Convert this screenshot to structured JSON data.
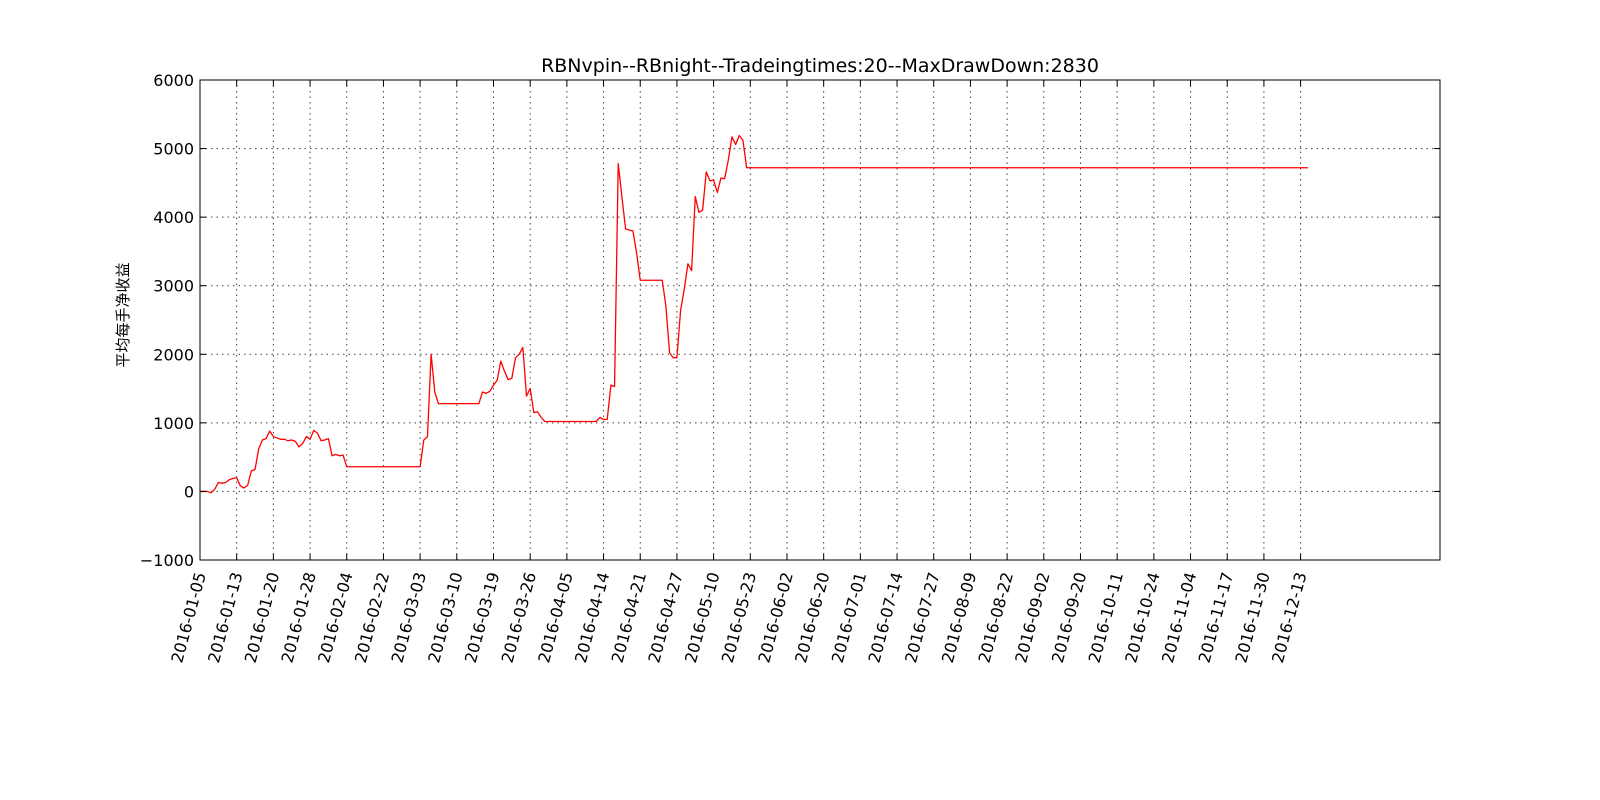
{
  "chart_data": {
    "type": "line",
    "title": "RBNvpin--RBnight--Tradeingtimes:20--MaxDrawDown:2830",
    "xlabel": "",
    "ylabel": "平均每手净收益",
    "ylim": [
      -1000,
      6000
    ],
    "yticks": [
      -1000,
      0,
      1000,
      2000,
      3000,
      4000,
      5000,
      6000
    ],
    "ytick_labels": [
      "−1000",
      "0",
      "1000",
      "2000",
      "3000",
      "4000",
      "5000",
      "6000"
    ],
    "x_index_range": [
      0,
      338
    ],
    "xtick_index": [
      0,
      10,
      20,
      30,
      40,
      50,
      60,
      70,
      80,
      90,
      100,
      110,
      120,
      130,
      140,
      150,
      160,
      170,
      180,
      190,
      200,
      210,
      220,
      230,
      240,
      250,
      260,
      270,
      280,
      290,
      300
    ],
    "xtick_labels": [
      "2016-01-05",
      "2016-01-13",
      "2016-01-20",
      "2016-01-28",
      "2016-02-04",
      "2016-02-22",
      "2016-03-03",
      "2016-03-10",
      "2016-03-19",
      "2016-03-26",
      "2016-04-05",
      "2016-04-14",
      "2016-04-21",
      "2016-04-27",
      "2016-05-10",
      "2016-05-23",
      "2016-06-02",
      "2016-06-20",
      "2016-07-01",
      "2016-07-14",
      "2016-07-27",
      "2016-08-09",
      "2016-08-22",
      "2016-09-02",
      "2016-09-20",
      "2016-10-11",
      "2016-10-24",
      "2016-11-04",
      "2016-11-17",
      "2016-11-30",
      "2016-12-13"
    ],
    "grid": true,
    "legend": "none",
    "series": [
      {
        "color": "#ff0000",
        "points": [
          [
            0,
            0
          ],
          [
            2,
            0
          ],
          [
            3,
            -20
          ],
          [
            4,
            30
          ],
          [
            5,
            130
          ],
          [
            6,
            120
          ],
          [
            7,
            130
          ],
          [
            8,
            170
          ],
          [
            9,
            190
          ],
          [
            10,
            200
          ],
          [
            11,
            80
          ],
          [
            12,
            50
          ],
          [
            13,
            90
          ],
          [
            14,
            300
          ],
          [
            15,
            320
          ],
          [
            16,
            620
          ],
          [
            17,
            750
          ],
          [
            18,
            770
          ],
          [
            19,
            880
          ],
          [
            20,
            800
          ],
          [
            21,
            780
          ],
          [
            22,
            760
          ],
          [
            23,
            760
          ],
          [
            24,
            740
          ],
          [
            25,
            750
          ],
          [
            26,
            730
          ],
          [
            27,
            650
          ],
          [
            28,
            700
          ],
          [
            29,
            800
          ],
          [
            30,
            760
          ],
          [
            31,
            890
          ],
          [
            32,
            850
          ],
          [
            33,
            740
          ],
          [
            34,
            750
          ],
          [
            35,
            770
          ],
          [
            36,
            520
          ],
          [
            37,
            540
          ],
          [
            38,
            520
          ],
          [
            39,
            530
          ],
          [
            40,
            360
          ],
          [
            50,
            360
          ],
          [
            60,
            360
          ],
          [
            61,
            750
          ],
          [
            62,
            800
          ],
          [
            63,
            2000
          ],
          [
            64,
            1450
          ],
          [
            65,
            1280
          ],
          [
            76,
            1280
          ],
          [
            77,
            1450
          ],
          [
            78,
            1430
          ],
          [
            79,
            1460
          ],
          [
            80,
            1550
          ],
          [
            81,
            1620
          ],
          [
            82,
            1900
          ],
          [
            83,
            1750
          ],
          [
            84,
            1630
          ],
          [
            85,
            1650
          ],
          [
            86,
            1950
          ],
          [
            87,
            2000
          ],
          [
            88,
            2100
          ],
          [
            89,
            1390
          ],
          [
            90,
            1500
          ],
          [
            91,
            1150
          ],
          [
            92,
            1160
          ],
          [
            93,
            1080
          ],
          [
            94,
            1020
          ],
          [
            108,
            1020
          ],
          [
            109,
            1080
          ],
          [
            110,
            1050
          ],
          [
            111,
            1050
          ],
          [
            112,
            1550
          ],
          [
            113,
            1530
          ],
          [
            114,
            4780
          ],
          [
            115,
            4300
          ],
          [
            116,
            3830
          ],
          [
            117,
            3810
          ],
          [
            118,
            3800
          ],
          [
            119,
            3480
          ],
          [
            120,
            3080
          ],
          [
            126,
            3080
          ],
          [
            127,
            2700
          ],
          [
            128,
            2020
          ],
          [
            129,
            1950
          ],
          [
            130,
            1950
          ],
          [
            131,
            2640
          ],
          [
            132,
            2950
          ],
          [
            133,
            3320
          ],
          [
            134,
            3220
          ],
          [
            135,
            4300
          ],
          [
            136,
            4070
          ],
          [
            137,
            4100
          ],
          [
            138,
            4660
          ],
          [
            139,
            4530
          ],
          [
            140,
            4540
          ],
          [
            141,
            4360
          ],
          [
            142,
            4570
          ],
          [
            143,
            4560
          ],
          [
            144,
            4830
          ],
          [
            145,
            5170
          ],
          [
            146,
            5060
          ],
          [
            147,
            5190
          ],
          [
            148,
            5120
          ],
          [
            149,
            4720
          ],
          [
            302,
            4720
          ]
        ]
      }
    ]
  }
}
